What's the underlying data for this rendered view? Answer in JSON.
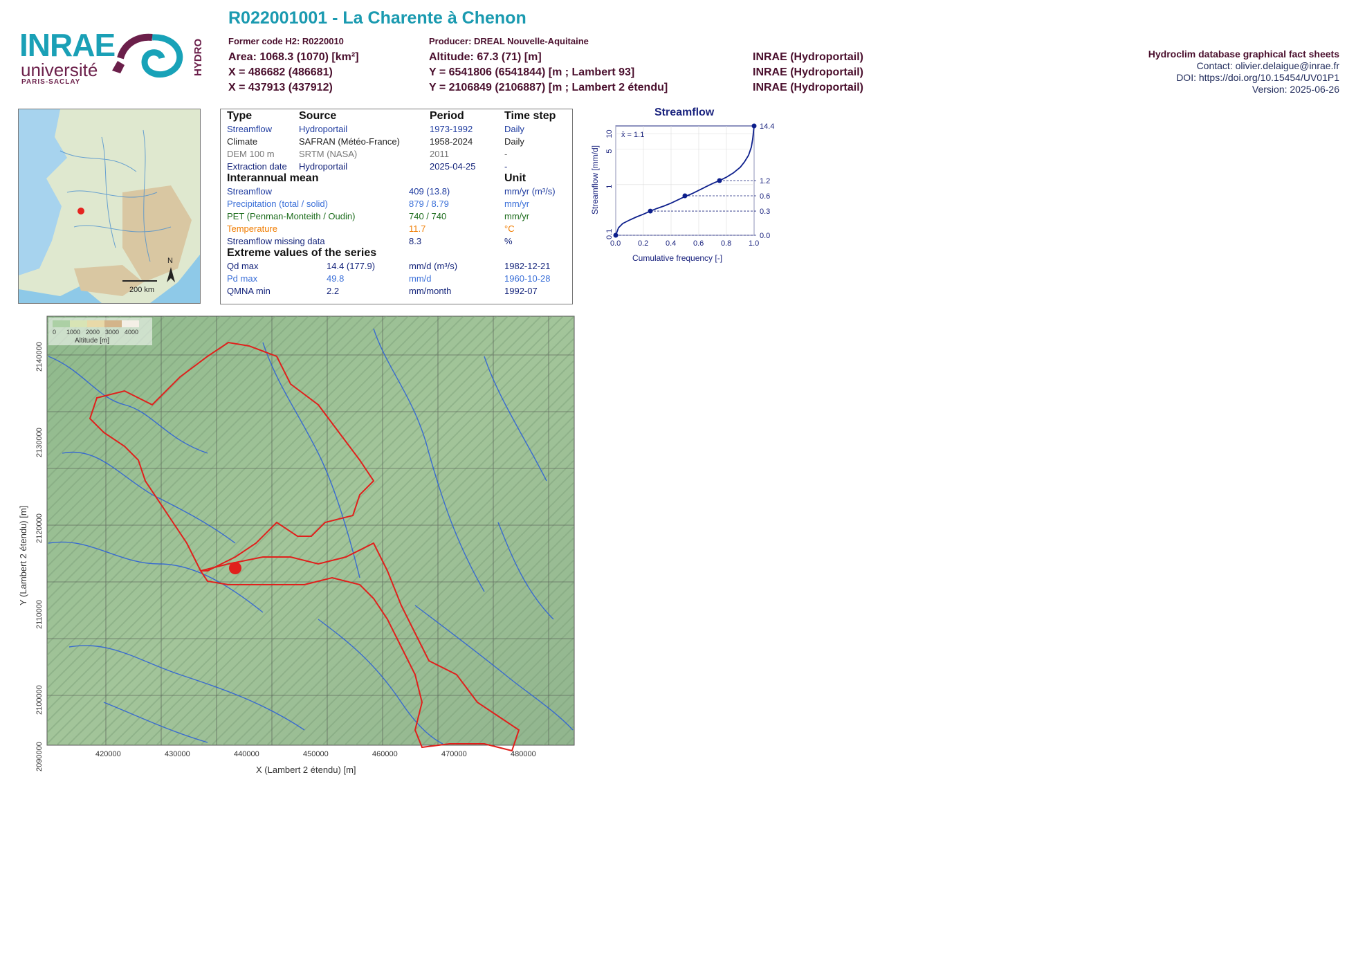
{
  "header": {
    "title": "R022001001 - La Charente à Chenon",
    "former_code": "Former code H2: R0220010",
    "producer": "Producer: DREAL Nouvelle-Aquitaine",
    "area": "Area: 1068.3 (1070) [km²]",
    "altitude": "Altitude: 67.3 (71) [m]",
    "x1": "X = 486682 (486681)",
    "y1": "Y = 6541806 (6541844) [m ; Lambert 93]",
    "x2": "X = 437913 (437912)",
    "y2": "Y = 2106849 (2106887) [m ; Lambert 2 étendu]",
    "src1": "INRAE (Hydroportail)",
    "src2": "INRAE (Hydroportail)",
    "src3": "INRAE (Hydroportail)"
  },
  "right_info": {
    "line1": "Hydroclim database graphical fact sheets",
    "line2": "Contact: olivier.delaigue@inrae.fr",
    "line3": "DOI: https://doi.org/10.15454/UV01P1",
    "line4": "Version: 2025-06-26"
  },
  "logos": {
    "inrae": "INRAE",
    "universite": "université",
    "paris_saclay": "PARIS-SACLAY",
    "hydro": "HYDRO"
  },
  "overview_map": {
    "scale_label": "200 km",
    "north_label": "N"
  },
  "info_table": {
    "head": {
      "type": "Type",
      "source": "Source",
      "period": "Period",
      "timestep": "Time step"
    },
    "rows": [
      {
        "type": "Streamflow",
        "source": "Hydroportail",
        "period": "1973-1992",
        "timestep": "Daily"
      },
      {
        "type": "Climate",
        "source": "SAFRAN (Météo-France)",
        "period": "1958-2024",
        "timestep": "Daily"
      },
      {
        "type": "DEM 100 m",
        "source": "SRTM (NASA)",
        "period": "2011",
        "timestep": "-"
      },
      {
        "type": "Extraction date",
        "source": "Hydroportail",
        "period": "2025-04-25",
        "timestep": "-"
      }
    ],
    "interannual_title": "Interannual mean",
    "unit_title": "Unit",
    "interannual": [
      {
        "label": "Streamflow",
        "value": "409 (13.8)",
        "unit": "mm/yr (m³/s)"
      },
      {
        "label": "Precipitation (total / solid)",
        "value": "879 / 8.79",
        "unit": "mm/yr"
      },
      {
        "label": "PET (Penman-Monteith / Oudin)",
        "value": "740 / 740",
        "unit": "mm/yr"
      },
      {
        "label": "Temperature",
        "value": "11.7",
        "unit": "°C"
      },
      {
        "label": "Streamflow missing data",
        "value": "8.3",
        "unit": "%"
      }
    ],
    "extreme_title": "Extreme values of the series",
    "extremes": [
      {
        "label": "Qd max",
        "value": "14.4 (177.9)",
        "unit": "mm/d (m³/s)",
        "date": "1982-12-21"
      },
      {
        "label": "Pd max",
        "value": "49.8",
        "unit": "mm/d",
        "date": "1960-10-28"
      },
      {
        "label": "QMNA min",
        "value": "2.2",
        "unit": "mm/month",
        "date": "1992-07"
      }
    ]
  },
  "relief_map": {
    "legend_ticks": [
      "0",
      "1000",
      "2000",
      "3000",
      "4000"
    ],
    "legend_title": "Altitude [m]",
    "x_ticks": [
      "420000",
      "430000",
      "440000",
      "450000",
      "460000",
      "470000",
      "480000"
    ],
    "y_ticks": [
      "2140000",
      "2130000",
      "2120000",
      "2110000",
      "2100000",
      "2090000"
    ],
    "xlabel": "X (Lambert 2 étendu) [m]",
    "ylabel": "Y (Lambert 2 étendu) [m]"
  },
  "chart_data": {
    "type": "line",
    "title": "Streamflow",
    "xlabel": "Cumulative frequency [-]",
    "ylabel": "Streamflow [mm/d]",
    "ylog": true,
    "xlim": [
      0,
      1
    ],
    "ylim": [
      0.1,
      14.4
    ],
    "x_ticks": [
      "0.0",
      "0.2",
      "0.4",
      "0.6",
      "0.8",
      "1.0"
    ],
    "y_ticks": [
      "0.1",
      "1",
      "5",
      "10"
    ],
    "right_ticks": [
      "14.4",
      "1.2",
      "0.6",
      "0.3",
      "0.0"
    ],
    "mean_label": "x̄ = 1.1",
    "curve": {
      "x": [
        0.0,
        0.02,
        0.05,
        0.1,
        0.15,
        0.2,
        0.25,
        0.3,
        0.35,
        0.4,
        0.45,
        0.5,
        0.55,
        0.6,
        0.65,
        0.7,
        0.75,
        0.8,
        0.85,
        0.9,
        0.93,
        0.96,
        0.98,
        0.99,
        1.0
      ],
      "y": [
        0.1,
        0.14,
        0.17,
        0.2,
        0.23,
        0.26,
        0.3,
        0.34,
        0.38,
        0.43,
        0.5,
        0.58,
        0.66,
        0.77,
        0.9,
        1.05,
        1.2,
        1.4,
        1.7,
        2.2,
        2.8,
        3.8,
        5.5,
        8.0,
        14.4
      ]
    },
    "markers": {
      "x": [
        0.0,
        0.25,
        0.5,
        0.75,
        1.0
      ],
      "y": [
        0.0,
        0.3,
        0.6,
        1.2,
        14.4
      ]
    }
  }
}
